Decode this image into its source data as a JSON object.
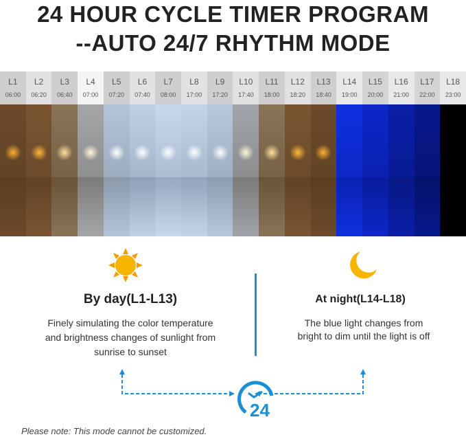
{
  "title": {
    "line1": "24 HOUR CYCLE TIMER PROGRAM",
    "line2": "--AUTO 24/7 RHYTHM MODE"
  },
  "levels": [
    {
      "label": "L1",
      "time": "06:00",
      "header": "#cfcfcf",
      "sky": "#6b4a2a",
      "sea": "#5a3e22",
      "sun": "#ffb030"
    },
    {
      "label": "L2",
      "time": "06:20",
      "header": "#e2e2e2",
      "sky": "#7a5532",
      "sea": "#5f4326",
      "sun": "#ffb838"
    },
    {
      "label": "L3",
      "time": "06:40",
      "header": "#cfcfcf",
      "sky": "#8a7458",
      "sea": "#6a5438",
      "sun": "#ffe0a0"
    },
    {
      "label": "L4",
      "time": "07:00",
      "header": "#f4f4f4",
      "sky": "#a4a6a8",
      "sea": "#7b7b78",
      "sun": "#fff4d8"
    },
    {
      "label": "L5",
      "time": "07:20",
      "header": "#cfcfcf",
      "sky": "#b4c4d8",
      "sea": "#8a98aa",
      "sun": "#ffffff"
    },
    {
      "label": "L6",
      "time": "07:40",
      "header": "#e2e2e2",
      "sky": "#c0d0e4",
      "sea": "#8ea0b6",
      "sun": "#ffffff"
    },
    {
      "label": "L7",
      "time": "08:00",
      "header": "#cfcfcf",
      "sky": "#c8d8ec",
      "sea": "#96a8be",
      "sun": "#ffffff"
    },
    {
      "label": "L8",
      "time": "17:00",
      "header": "#e2e2e2",
      "sky": "#c4d4e8",
      "sea": "#92a4ba",
      "sun": "#ffffff"
    },
    {
      "label": "L9",
      "time": "17:20",
      "header": "#cfcfcf",
      "sky": "#b8c8dc",
      "sea": "#8a9cb0",
      "sun": "#ffffff"
    },
    {
      "label": "L10",
      "time": "17:40",
      "header": "#e2e2e2",
      "sky": "#a0a4aa",
      "sea": "#7a7a78",
      "sun": "#fff4d8"
    },
    {
      "label": "L11",
      "time": "18:00",
      "header": "#cfcfcf",
      "sky": "#8a7458",
      "sea": "#6a5438",
      "sun": "#ffe0a0"
    },
    {
      "label": "L12",
      "time": "18:20",
      "header": "#e2e2e2",
      "sky": "#7a5532",
      "sea": "#5f4326",
      "sun": "#ffb838"
    },
    {
      "label": "L13",
      "time": "18:40",
      "header": "#cfcfcf",
      "sky": "#6b4a2a",
      "sea": "#5a3e22",
      "sun": "#ffb030"
    },
    {
      "label": "L14",
      "time": "19:00",
      "header": "#e8e8e8",
      "sky": "#1030e0",
      "sea": "#0c22b0",
      "sun": ""
    },
    {
      "label": "L15",
      "time": "20:00",
      "header": "#d4d4d4",
      "sky": "#0c26c8",
      "sea": "#0a1c9c",
      "sun": ""
    },
    {
      "label": "L16",
      "time": "21:00",
      "header": "#e8e8e8",
      "sky": "#0a1ea8",
      "sea": "#081884",
      "sun": ""
    },
    {
      "label": "L17",
      "time": "22:00",
      "header": "#d4d4d4",
      "sky": "#08188c",
      "sea": "#06126a",
      "sun": ""
    },
    {
      "label": "L18",
      "time": "23:00",
      "header": "#e8e8e8",
      "sky": "#000000",
      "sea": "#000000",
      "sun": ""
    }
  ],
  "day": {
    "icon": "sun-icon",
    "heading": "By day(L1-L13)",
    "text1": "Finely simulating the color temperature",
    "text2": "and brightness changes of sunlight from",
    "text3": "sunrise to sunset"
  },
  "night": {
    "icon": "moon-icon",
    "heading": "At night(L14-L18)",
    "text1": "The blue light changes from",
    "text2": "bright to dim until the light is off"
  },
  "clock": {
    "label": "24"
  },
  "note": "Please note: This mode cannot be customized.",
  "colors": {
    "accent": "#1a8fd6",
    "sun": "#f7b500",
    "moon": "#f7b500"
  }
}
